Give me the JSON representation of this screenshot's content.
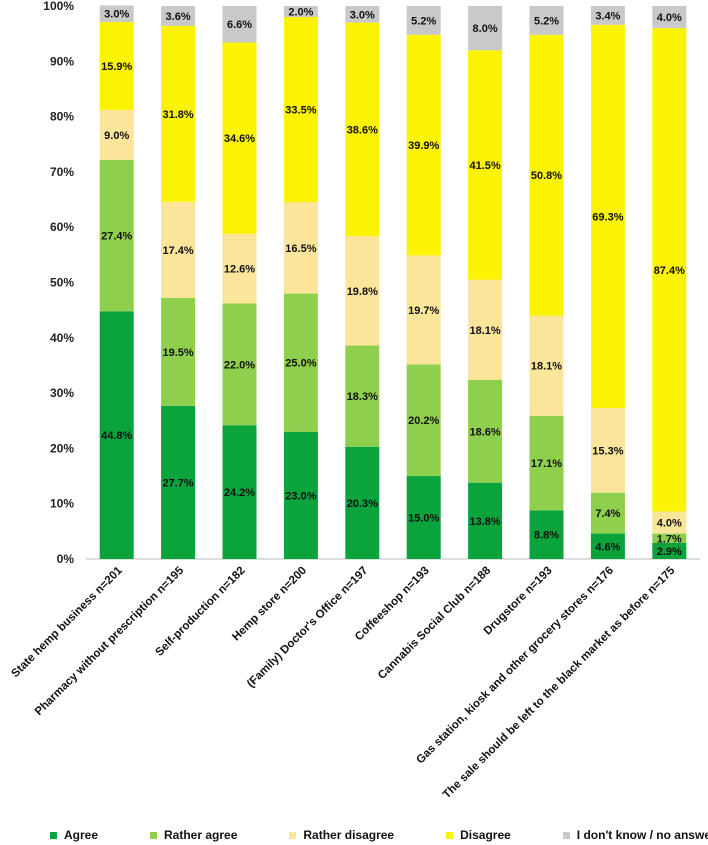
{
  "chart_data": {
    "type": "bar",
    "stacked": true,
    "title": "",
    "xlabel": "",
    "ylabel": "",
    "ylim": [
      0,
      100
    ],
    "yticks": [
      "0%",
      "10%",
      "20%",
      "30%",
      "40%",
      "50%",
      "60%",
      "70%",
      "80%",
      "90%",
      "100%"
    ],
    "categories": [
      "State hemp business n=201",
      "Pharmacy without prescription n=195",
      "Self-production n=182",
      "Hemp store n=200",
      "(Family) Doctor's Office n=197",
      "Coffeeshop n=193",
      "Cannabis Social Club n=188",
      "Drugstore n=193",
      "Gas station, kiosk and other grocery stores n=176",
      "The sale should be left to the black market as before n=175"
    ],
    "series": [
      {
        "name": "Agree",
        "color": "#0aa33c",
        "values": [
          44.8,
          27.7,
          24.2,
          23.0,
          20.3,
          15.0,
          13.8,
          8.8,
          4.6,
          2.9
        ],
        "labels": [
          "44.8%",
          "27.7%",
          "24.2%",
          "23.0%",
          "20.3%",
          "15.0%",
          "13.8%",
          "8.8%",
          "4.6%",
          "2.9%"
        ]
      },
      {
        "name": "Rather agree",
        "color": "#8fcf4e",
        "values": [
          27.4,
          19.5,
          22.0,
          25.0,
          18.3,
          20.2,
          18.6,
          17.1,
          7.4,
          1.7
        ],
        "labels": [
          "27.4%",
          "19.5%",
          "22.0%",
          "25.0%",
          "18.3%",
          "20.2%",
          "18.6%",
          "17.1%",
          "7.4%",
          "1.7%"
        ]
      },
      {
        "name": "Rather disagree",
        "color": "#fbe59a",
        "values": [
          9.0,
          17.4,
          12.6,
          16.5,
          19.8,
          19.7,
          18.1,
          18.1,
          15.3,
          4.0
        ],
        "labels": [
          "9.0%",
          "17.4%",
          "12.6%",
          "16.5%",
          "19.8%",
          "19.7%",
          "18.1%",
          "18.1%",
          "15.3%",
          "4.0%"
        ]
      },
      {
        "name": "Disagree",
        "color": "#fbf301",
        "values": [
          15.9,
          31.8,
          34.6,
          33.5,
          38.6,
          39.9,
          41.5,
          50.8,
          69.3,
          87.4
        ],
        "labels": [
          "15.9%",
          "31.8%",
          "34.6%",
          "33.5%",
          "38.6%",
          "39.9%",
          "41.5%",
          "50.8%",
          "69.3%",
          "87.4%"
        ]
      },
      {
        "name": "I don't know / no answer",
        "color": "#c9c9c9",
        "values": [
          3.0,
          3.6,
          6.6,
          2.0,
          3.0,
          5.2,
          8.0,
          5.2,
          3.4,
          4.0
        ],
        "labels": [
          "3.0%",
          "3.6%",
          "6.6%",
          "2.0%",
          "3.0%",
          "5.2%",
          "8.0%",
          "5.2%",
          "3.4%",
          "4.0%"
        ]
      }
    ],
    "legend": [
      {
        "label": "Agree",
        "color": "#0aa33c"
      },
      {
        "label": "Rather agree",
        "color": "#8fcf4e"
      },
      {
        "label": "Rather disagree",
        "color": "#fbe59a"
      },
      {
        "label": "Disagree",
        "color": "#fbf301"
      },
      {
        "label": "I don't know / no answer",
        "color": "#c9c9c9"
      }
    ],
    "legend_position": "bottom",
    "grid": false
  }
}
